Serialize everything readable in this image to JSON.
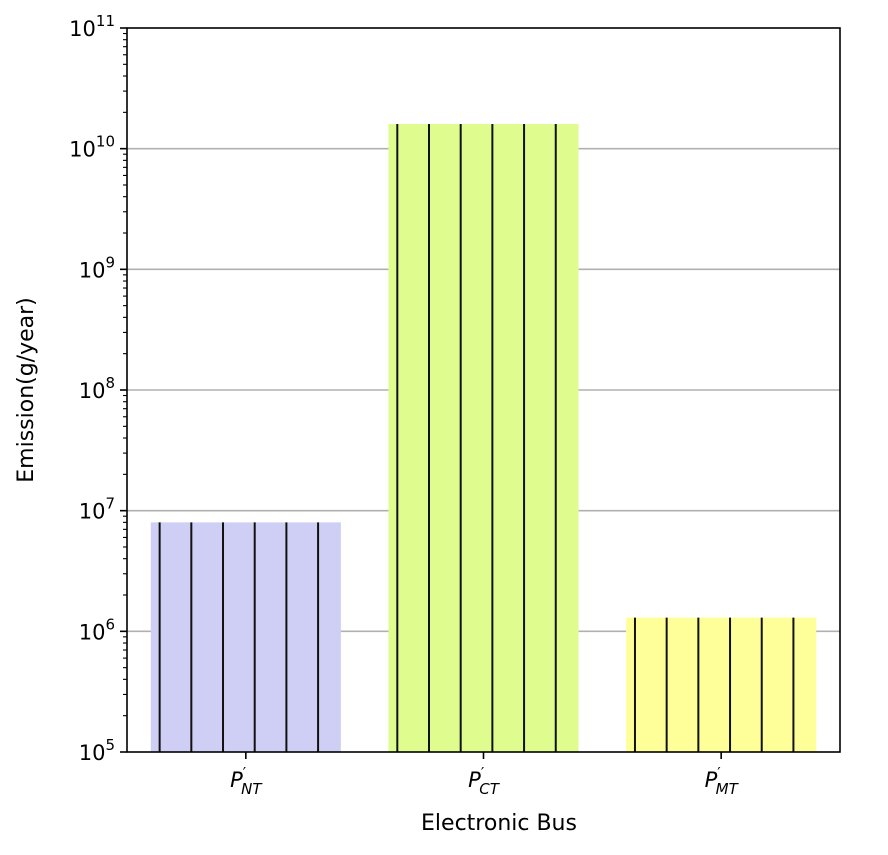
{
  "chart_data": {
    "type": "bar",
    "xlabel": "Electronic Bus",
    "ylabel": "Emission(g/year)",
    "yscale": "log",
    "ylim": [
      100000,
      100000000000
    ],
    "ytick_exponents": [
      5,
      6,
      7,
      8,
      9,
      10,
      11
    ],
    "ytick_base": "10",
    "grid": "horizontal",
    "hatch": "vertical lines",
    "categories": [
      {
        "main": "P",
        "prime": "′",
        "sub": "NT"
      },
      {
        "main": "P",
        "prime": "′",
        "sub": "CT"
      },
      {
        "main": "P",
        "prime": "′",
        "sub": "MT"
      }
    ],
    "values": [
      8000000,
      16000000000,
      1300000
    ],
    "colors": [
      "#cfcff5",
      "#dffd8f",
      "#ffff99"
    ]
  }
}
